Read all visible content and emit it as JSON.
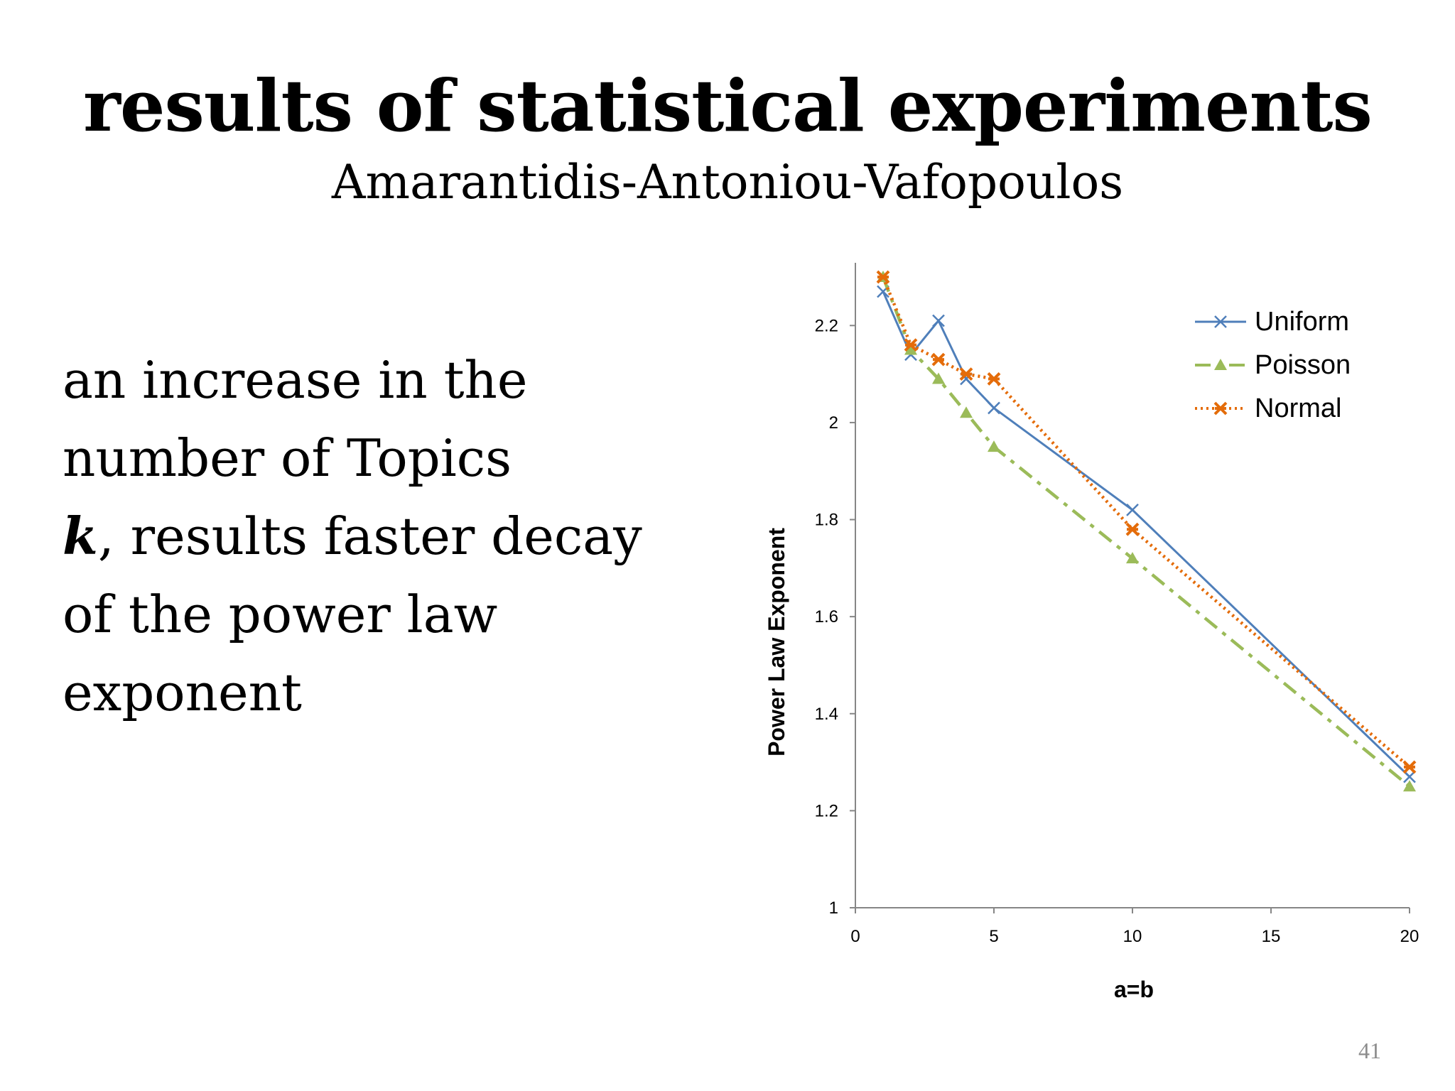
{
  "slide": {
    "title": "results of statistical experiments",
    "subtitle": "Amarantidis-Antoniou-Vafopoulos",
    "body": {
      "line1": "an increase in the",
      "line2": "number of Topics",
      "line3_emph": "k",
      "line3_rest": ", results faster decay",
      "line4": "of the power law",
      "line5": "exponent"
    },
    "page_number": "41"
  },
  "chart_data": {
    "type": "line",
    "title": "",
    "xlabel": "a=b",
    "ylabel": "Power Law Exponent",
    "xlim": [
      0,
      20
    ],
    "ylim": [
      1,
      2.3
    ],
    "x_ticks": [
      0,
      5,
      10,
      15,
      20
    ],
    "y_ticks": [
      1,
      1.2,
      1.4,
      1.6,
      1.8,
      2,
      2.2
    ],
    "y_tick_labels": [
      "1",
      "1.2",
      "1.4",
      "1.6",
      "1.8",
      "2",
      "2.2"
    ],
    "legend_position": "top-right",
    "grid": false,
    "series": [
      {
        "name": "Uniform",
        "color": "#4f7fba",
        "marker": "x",
        "line_style": "solid",
        "points": [
          [
            1,
            2.27
          ],
          [
            2,
            2.14
          ],
          [
            3,
            2.21
          ],
          [
            4,
            2.09
          ],
          [
            5,
            2.03
          ],
          [
            10,
            1.82
          ],
          [
            20,
            1.27
          ]
        ]
      },
      {
        "name": "Poisson",
        "color": "#9bbb59",
        "marker": "triangle",
        "line_style": "dash-dot",
        "points": [
          [
            1,
            2.3
          ],
          [
            2,
            2.15
          ],
          [
            3,
            2.09
          ],
          [
            4,
            2.02
          ],
          [
            5,
            1.95
          ],
          [
            10,
            1.72
          ],
          [
            20,
            1.25
          ]
        ]
      },
      {
        "name": "Normal",
        "color": "#e46c0a",
        "marker": "star",
        "line_style": "dotted",
        "points": [
          [
            1,
            2.3
          ],
          [
            2,
            2.16
          ],
          [
            3,
            2.13
          ],
          [
            4,
            2.1
          ],
          [
            5,
            2.09
          ],
          [
            10,
            1.78
          ],
          [
            20,
            1.29
          ]
        ]
      }
    ]
  }
}
